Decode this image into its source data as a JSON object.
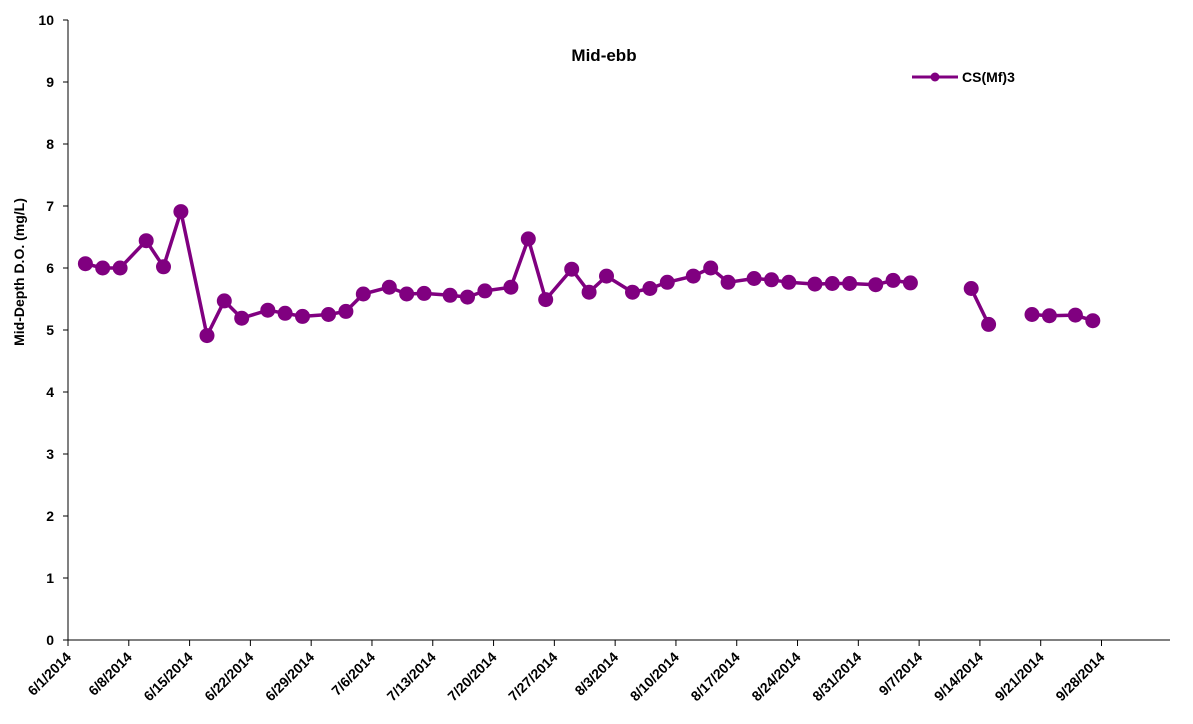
{
  "chart_data": {
    "type": "line",
    "title": "Mid-ebb",
    "xlabel": "",
    "ylabel": "Mid-Depth D.O. (mg/L)",
    "ylim": [
      0,
      10
    ],
    "yticks": [
      0,
      1,
      2,
      3,
      4,
      5,
      6,
      7,
      8,
      9,
      10
    ],
    "xlim": [
      "2014-06-01",
      "2014-09-28"
    ],
    "xticks": [
      "2014-06-01",
      "2014-06-08",
      "2014-06-15",
      "2014-06-22",
      "2014-06-29",
      "2014-07-06",
      "2014-07-13",
      "2014-07-20",
      "2014-07-27",
      "2014-08-03",
      "2014-08-10",
      "2014-08-17",
      "2014-08-24",
      "2014-08-31",
      "2014-09-07",
      "2014-09-14",
      "2014-09-21",
      "2014-09-28"
    ],
    "xtick_labels": [
      "6/1/2014",
      "6/8/2014",
      "6/15/2014",
      "6/22/2014",
      "6/29/2014",
      "7/6/2014",
      "7/13/2014",
      "7/20/2014",
      "7/27/2014",
      "8/3/2014",
      "8/10/2014",
      "8/17/2014",
      "8/24/2014",
      "8/31/2014",
      "9/7/2014",
      "9/14/2014",
      "9/21/2014",
      "9/28/2014"
    ],
    "grid": false,
    "legend_position": "top-right",
    "color": "#800080",
    "series": [
      {
        "name": "CS(Mf)3",
        "points": [
          [
            "2014-06-03",
            6.07
          ],
          [
            "2014-06-05",
            6.0
          ],
          [
            "2014-06-07",
            6.0
          ],
          [
            "2014-06-10",
            6.44
          ],
          [
            "2014-06-12",
            6.02
          ],
          [
            "2014-06-14",
            6.91
          ],
          [
            "2014-06-17",
            4.91
          ],
          [
            "2014-06-19",
            5.47
          ],
          [
            "2014-06-21",
            5.19
          ],
          [
            "2014-06-24",
            5.32
          ],
          [
            "2014-06-26",
            5.27
          ],
          [
            "2014-06-28",
            5.22
          ],
          [
            "2014-07-01",
            5.25
          ],
          [
            "2014-07-03",
            5.3
          ],
          [
            "2014-07-05",
            5.58
          ],
          [
            "2014-07-08",
            5.69
          ],
          [
            "2014-07-10",
            5.58
          ],
          [
            "2014-07-12",
            5.59
          ],
          [
            "2014-07-15",
            5.56
          ],
          [
            "2014-07-17",
            5.53
          ],
          [
            "2014-07-19",
            5.63
          ],
          [
            "2014-07-22",
            5.69
          ],
          [
            "2014-07-24",
            6.47
          ],
          [
            "2014-07-26",
            5.49
          ],
          [
            "2014-07-29",
            5.98
          ],
          [
            "2014-07-31",
            5.61
          ],
          [
            "2014-08-02",
            5.87
          ],
          [
            "2014-08-05",
            5.61
          ],
          [
            "2014-08-07",
            5.67
          ],
          [
            "2014-08-09",
            5.77
          ],
          [
            "2014-08-12",
            5.87
          ],
          [
            "2014-08-14",
            6.0
          ],
          [
            "2014-08-16",
            5.77
          ],
          [
            "2014-08-19",
            5.83
          ],
          [
            "2014-08-21",
            5.81
          ],
          [
            "2014-08-23",
            5.77
          ],
          [
            "2014-08-26",
            5.74
          ],
          [
            "2014-08-28",
            5.75
          ],
          [
            "2014-08-30",
            5.75
          ],
          [
            "2014-09-02",
            5.73
          ],
          [
            "2014-09-04",
            5.8
          ],
          [
            "2014-09-06",
            5.76
          ],
          null,
          [
            "2014-09-13",
            5.67
          ],
          [
            "2014-09-15",
            5.09
          ],
          null,
          [
            "2014-09-20",
            5.25
          ],
          [
            "2014-09-22",
            5.23
          ],
          [
            "2014-09-25",
            5.24
          ],
          [
            "2014-09-27",
            5.15
          ]
        ]
      }
    ]
  }
}
